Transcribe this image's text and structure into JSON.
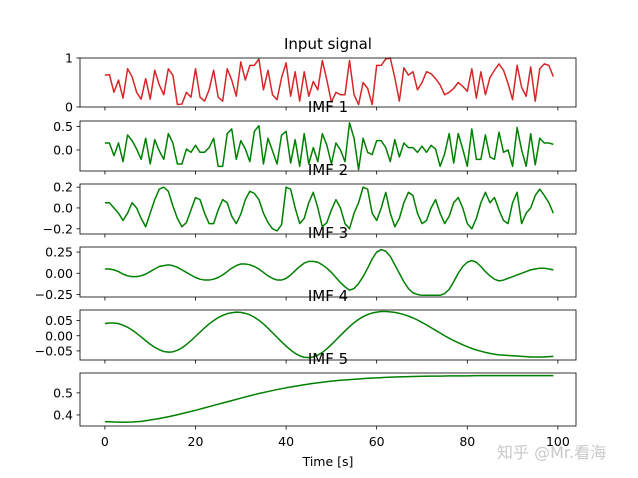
{
  "chart_data": [
    {
      "type": "line",
      "title": "Input signal",
      "color": "#d62728",
      "ylim": [
        0,
        1
      ],
      "yticks": [
        0,
        1
      ],
      "ytick_labels": [
        "0",
        "1"
      ],
      "x": [
        0,
        1,
        2,
        3,
        4,
        5,
        6,
        7,
        8,
        9,
        10,
        11,
        12,
        13,
        14,
        15,
        16,
        17,
        18,
        19,
        20,
        21,
        22,
        23,
        24,
        25,
        26,
        27,
        28,
        29,
        30,
        31,
        32,
        33,
        34,
        35,
        36,
        37,
        38,
        39,
        40,
        41,
        42,
        43,
        44,
        45,
        46,
        47,
        48,
        49,
        50,
        51,
        52,
        53,
        54,
        55,
        56,
        57,
        58,
        59,
        60,
        61,
        62,
        63,
        64,
        65,
        66,
        67,
        68,
        69,
        70,
        71,
        72,
        73,
        74,
        75,
        76,
        77,
        78,
        79,
        80,
        81,
        82,
        83,
        84,
        85,
        86,
        87,
        88,
        89,
        90,
        91,
        92,
        93,
        94,
        95,
        96,
        97,
        98,
        99
      ],
      "values": [
        0.65,
        0.66,
        0.3,
        0.55,
        0.18,
        0.78,
        0.62,
        0.3,
        0.16,
        0.58,
        0.16,
        0.75,
        0.45,
        0.25,
        0.78,
        0.65,
        0.05,
        0.06,
        0.3,
        0.2,
        0.78,
        0.2,
        0.12,
        0.35,
        0.75,
        0.2,
        0.12,
        0.78,
        0.55,
        0.22,
        0.92,
        0.55,
        0.85,
        0.85,
        0.98,
        0.35,
        0.75,
        0.25,
        0.15,
        0.6,
        0.9,
        0.22,
        0.72,
        0.12,
        0.72,
        0.22,
        0.52,
        0.35,
        0.95,
        0.55,
        0.1,
        0.3,
        0.25,
        0.25,
        0.95,
        0.25,
        0.05,
        0.5,
        0.38,
        0.05,
        0.85,
        0.85,
        0.98,
        1.0,
        0.6,
        0.12,
        0.8,
        0.65,
        0.72,
        0.35,
        0.5,
        0.72,
        0.68,
        0.58,
        0.45,
        0.25,
        0.3,
        0.38,
        0.5,
        0.42,
        0.32,
        0.78,
        0.18,
        0.72,
        0.25,
        0.6,
        0.75,
        0.88,
        0.75,
        0.48,
        0.15,
        0.85,
        0.4,
        0.22,
        0.82,
        0.12,
        0.78,
        0.88,
        0.85,
        0.62
      ]
    },
    {
      "type": "line",
      "title": "IMF 1",
      "color": "#008000",
      "ylim": [
        -0.45,
        0.62
      ],
      "yticks": [
        0.5,
        0.0
      ],
      "ytick_labels": [
        "0.5",
        "0.0"
      ],
      "x": [
        0,
        1,
        2,
        3,
        4,
        5,
        6,
        7,
        8,
        9,
        10,
        11,
        12,
        13,
        14,
        15,
        16,
        17,
        18,
        19,
        20,
        21,
        22,
        23,
        24,
        25,
        26,
        27,
        28,
        29,
        30,
        31,
        32,
        33,
        34,
        35,
        36,
        37,
        38,
        39,
        40,
        41,
        42,
        43,
        44,
        45,
        46,
        47,
        48,
        49,
        50,
        51,
        52,
        53,
        54,
        55,
        56,
        57,
        58,
        59,
        60,
        61,
        62,
        63,
        64,
        65,
        66,
        67,
        68,
        69,
        70,
        71,
        72,
        73,
        74,
        75,
        76,
        77,
        78,
        79,
        80,
        81,
        82,
        83,
        84,
        85,
        86,
        87,
        88,
        89,
        90,
        91,
        92,
        93,
        94,
        95,
        96,
        97,
        98,
        99
      ],
      "values": [
        0.15,
        0.15,
        -0.12,
        0.15,
        -0.25,
        0.32,
        0.2,
        0.02,
        -0.2,
        0.25,
        -0.3,
        0.22,
        -0.02,
        -0.2,
        0.35,
        0.15,
        -0.3,
        -0.3,
        0.02,
        -0.05,
        0.1,
        -0.05,
        -0.05,
        0.05,
        0.25,
        -0.35,
        -0.35,
        0.35,
        0.45,
        -0.2,
        0.2,
        0.02,
        -0.25,
        0.4,
        0.52,
        -0.3,
        0.25,
        -0.02,
        -0.3,
        0.32,
        0.4,
        -0.28,
        0.22,
        -0.35,
        0.35,
        -0.3,
        0.05,
        -0.25,
        0.35,
        0.1,
        -0.3,
        0.15,
        0.0,
        -0.25,
        0.58,
        0.25,
        -0.42,
        0.25,
        -0.05,
        -0.1,
        0.2,
        0.2,
        0.05,
        -0.25,
        0.22,
        -0.15,
        0.15,
        0.05,
        0.05,
        -0.05,
        0.08,
        -0.05,
        0.1,
        0.02,
        -0.35,
        -0.08,
        0.35,
        -0.28,
        0.35,
        0.02,
        -0.35,
        0.45,
        -0.2,
        -0.2,
        0.32,
        -0.15,
        -0.2,
        0.38,
        -0.05,
        0.0,
        -0.35,
        0.48,
        0.0,
        -0.35,
        0.35,
        -0.32,
        0.25,
        0.15,
        0.15,
        0.12
      ]
    },
    {
      "type": "line",
      "title": "IMF 2",
      "color": "#008000",
      "ylim": [
        -0.25,
        0.23
      ],
      "yticks": [
        0.2,
        0.0,
        -0.2
      ],
      "ytick_labels": [
        "0.2",
        "0.0",
        "−0.2"
      ],
      "x": [
        0,
        1,
        2,
        3,
        4,
        5,
        6,
        7,
        8,
        9,
        10,
        11,
        12,
        13,
        14,
        15,
        16,
        17,
        18,
        19,
        20,
        21,
        22,
        23,
        24,
        25,
        26,
        27,
        28,
        29,
        30,
        31,
        32,
        33,
        34,
        35,
        36,
        37,
        38,
        39,
        40,
        41,
        42,
        43,
        44,
        45,
        46,
        47,
        48,
        49,
        50,
        51,
        52,
        53,
        54,
        55,
        56,
        57,
        58,
        59,
        60,
        61,
        62,
        63,
        64,
        65,
        66,
        67,
        68,
        69,
        70,
        71,
        72,
        73,
        74,
        75,
        76,
        77,
        78,
        79,
        80,
        81,
        82,
        83,
        84,
        85,
        86,
        87,
        88,
        89,
        90,
        91,
        92,
        93,
        94,
        95,
        96,
        97,
        98,
        99
      ],
      "values": [
        0.05,
        0.05,
        0.0,
        -0.05,
        -0.12,
        -0.05,
        0.05,
        0.0,
        -0.1,
        -0.18,
        -0.05,
        0.08,
        0.18,
        0.2,
        0.16,
        0.02,
        -0.1,
        -0.18,
        -0.14,
        -0.02,
        0.1,
        0.08,
        -0.05,
        -0.15,
        -0.15,
        -0.02,
        0.08,
        0.05,
        -0.08,
        -0.15,
        -0.06,
        0.08,
        0.16,
        0.14,
        0.08,
        -0.05,
        -0.14,
        -0.2,
        -0.22,
        -0.16,
        0.2,
        0.18,
        0.0,
        -0.15,
        -0.1,
        0.05,
        0.15,
        0.0,
        -0.18,
        -0.14,
        -0.02,
        0.08,
        0.0,
        -0.15,
        -0.2,
        -0.05,
        0.05,
        0.2,
        0.18,
        -0.05,
        -0.12,
        0.0,
        0.15,
        -0.05,
        -0.18,
        -0.1,
        0.05,
        0.15,
        0.12,
        -0.05,
        -0.15,
        -0.12,
        0.0,
        0.08,
        -0.05,
        -0.15,
        -0.08,
        0.05,
        0.1,
        0.0,
        -0.15,
        -0.2,
        -0.1,
        0.05,
        0.15,
        0.05,
        0.1,
        -0.02,
        -0.12,
        -0.15,
        0.05,
        0.15,
        -0.15,
        -0.05,
        0.0,
        0.12,
        0.18,
        0.12,
        0.05,
        -0.05
      ]
    },
    {
      "type": "line",
      "title": "IMF 3",
      "color": "#008000",
      "ylim": [
        -0.28,
        0.31
      ],
      "yticks": [
        0.25,
        0.0,
        -0.25
      ],
      "ytick_labels": [
        "0.25",
        "0.00",
        "−0.25"
      ],
      "x": [
        0,
        1,
        2,
        3,
        4,
        5,
        6,
        7,
        8,
        9,
        10,
        11,
        12,
        13,
        14,
        15,
        16,
        17,
        18,
        19,
        20,
        21,
        22,
        23,
        24,
        25,
        26,
        27,
        28,
        29,
        30,
        31,
        32,
        33,
        34,
        35,
        36,
        37,
        38,
        39,
        40,
        41,
        42,
        43,
        44,
        45,
        46,
        47,
        48,
        49,
        50,
        51,
        52,
        53,
        54,
        55,
        56,
        57,
        58,
        59,
        60,
        61,
        62,
        63,
        64,
        65,
        66,
        67,
        68,
        69,
        70,
        71,
        72,
        73,
        74,
        75,
        76,
        77,
        78,
        79,
        80,
        81,
        82,
        83,
        84,
        85,
        86,
        87,
        88,
        89,
        90,
        91,
        92,
        93,
        94,
        95,
        96,
        97,
        98,
        99
      ],
      "values": [
        0.05,
        0.05,
        0.04,
        0.02,
        -0.01,
        -0.03,
        -0.04,
        -0.04,
        -0.03,
        -0.01,
        0.02,
        0.05,
        0.08,
        0.09,
        0.1,
        0.09,
        0.07,
        0.04,
        0.01,
        -0.02,
        -0.05,
        -0.07,
        -0.08,
        -0.08,
        -0.07,
        -0.05,
        -0.02,
        0.02,
        0.06,
        0.09,
        0.11,
        0.11,
        0.1,
        0.08,
        0.05,
        0.01,
        -0.03,
        -0.06,
        -0.08,
        -0.08,
        -0.06,
        -0.02,
        0.03,
        0.08,
        0.12,
        0.14,
        0.14,
        0.13,
        0.1,
        0.06,
        0.01,
        -0.05,
        -0.11,
        -0.16,
        -0.2,
        -0.18,
        -0.12,
        -0.04,
        0.06,
        0.17,
        0.25,
        0.28,
        0.26,
        0.2,
        0.1,
        0.0,
        -0.1,
        -0.18,
        -0.23,
        -0.25,
        -0.26,
        -0.26,
        -0.26,
        -0.26,
        -0.26,
        -0.24,
        -0.19,
        -0.1,
        0.0,
        0.08,
        0.13,
        0.15,
        0.13,
        0.08,
        0.02,
        -0.03,
        -0.07,
        -0.09,
        -0.08,
        -0.06,
        -0.04,
        -0.02,
        0.0,
        0.02,
        0.04,
        0.05,
        0.06,
        0.06,
        0.05,
        0.04
      ]
    },
    {
      "type": "line",
      "title": "IMF 4",
      "color": "#008000",
      "ylim": [
        -0.08,
        0.085
      ],
      "yticks": [
        0.05,
        0.0,
        -0.05
      ],
      "ytick_labels": [
        "0.05",
        "0.00",
        "−0.05"
      ],
      "x": [
        0,
        1,
        2,
        3,
        4,
        5,
        6,
        7,
        8,
        9,
        10,
        11,
        12,
        13,
        14,
        15,
        16,
        17,
        18,
        19,
        20,
        21,
        22,
        23,
        24,
        25,
        26,
        27,
        28,
        29,
        30,
        31,
        32,
        33,
        34,
        35,
        36,
        37,
        38,
        39,
        40,
        41,
        42,
        43,
        44,
        45,
        46,
        47,
        48,
        49,
        50,
        51,
        52,
        53,
        54,
        55,
        56,
        57,
        58,
        59,
        60,
        61,
        62,
        63,
        64,
        65,
        66,
        67,
        68,
        69,
        70,
        71,
        72,
        73,
        74,
        75,
        76,
        77,
        78,
        79,
        80,
        81,
        82,
        83,
        84,
        85,
        86,
        87,
        88,
        89,
        90,
        91,
        92,
        93,
        94,
        95,
        96,
        97,
        98,
        99
      ],
      "values": [
        0.04,
        0.042,
        0.042,
        0.04,
        0.035,
        0.028,
        0.019,
        0.008,
        -0.004,
        -0.016,
        -0.028,
        -0.038,
        -0.046,
        -0.052,
        -0.054,
        -0.053,
        -0.048,
        -0.04,
        -0.029,
        -0.016,
        -0.002,
        0.012,
        0.026,
        0.039,
        0.05,
        0.06,
        0.067,
        0.073,
        0.076,
        0.078,
        0.077,
        0.074,
        0.069,
        0.061,
        0.051,
        0.039,
        0.025,
        0.01,
        -0.005,
        -0.02,
        -0.034,
        -0.047,
        -0.058,
        -0.066,
        -0.071,
        -0.072,
        -0.07,
        -0.064,
        -0.055,
        -0.043,
        -0.029,
        -0.014,
        0.001,
        0.016,
        0.03,
        0.043,
        0.054,
        0.063,
        0.07,
        0.075,
        0.078,
        0.08,
        0.08,
        0.079,
        0.077,
        0.074,
        0.07,
        0.065,
        0.059,
        0.052,
        0.044,
        0.036,
        0.027,
        0.018,
        0.009,
        0.0,
        -0.008,
        -0.016,
        -0.023,
        -0.03,
        -0.036,
        -0.042,
        -0.047,
        -0.051,
        -0.055,
        -0.058,
        -0.061,
        -0.063,
        -0.064,
        -0.065,
        -0.066,
        -0.067,
        -0.068,
        -0.069,
        -0.07,
        -0.07,
        -0.07,
        -0.07,
        -0.069,
        -0.068
      ]
    },
    {
      "type": "line",
      "title": "IMF 5",
      "color": "#008000",
      "xlabel": "Time [s]",
      "xlim": [
        -5.5,
        104
      ],
      "xticks": [
        0,
        20,
        40,
        60,
        80,
        100
      ],
      "xtick_labels": [
        "0",
        "20",
        "40",
        "60",
        "80",
        "100"
      ],
      "ylim": [
        0.35,
        0.59
      ],
      "yticks": [
        0.5,
        0.4
      ],
      "ytick_labels": [
        "0.5",
        "0.4"
      ],
      "x": [
        0,
        2,
        4,
        6,
        8,
        10,
        12,
        14,
        16,
        18,
        20,
        22,
        24,
        26,
        28,
        30,
        32,
        34,
        36,
        38,
        40,
        42,
        44,
        46,
        48,
        50,
        52,
        54,
        56,
        58,
        60,
        62,
        64,
        66,
        68,
        70,
        72,
        74,
        76,
        78,
        80,
        82,
        84,
        86,
        88,
        90,
        92,
        94,
        96,
        98,
        99
      ],
      "values": [
        0.37,
        0.368,
        0.367,
        0.368,
        0.371,
        0.377,
        0.384,
        0.392,
        0.401,
        0.411,
        0.421,
        0.432,
        0.443,
        0.454,
        0.465,
        0.476,
        0.487,
        0.497,
        0.506,
        0.515,
        0.523,
        0.53,
        0.537,
        0.543,
        0.548,
        0.553,
        0.557,
        0.56,
        0.563,
        0.566,
        0.568,
        0.57,
        0.572,
        0.573,
        0.574,
        0.575,
        0.576,
        0.576,
        0.577,
        0.577,
        0.577,
        0.578,
        0.578,
        0.578,
        0.578,
        0.578,
        0.578,
        0.578,
        0.578,
        0.578,
        0.578
      ]
    }
  ],
  "watermark": "知乎 @Mr.看海"
}
